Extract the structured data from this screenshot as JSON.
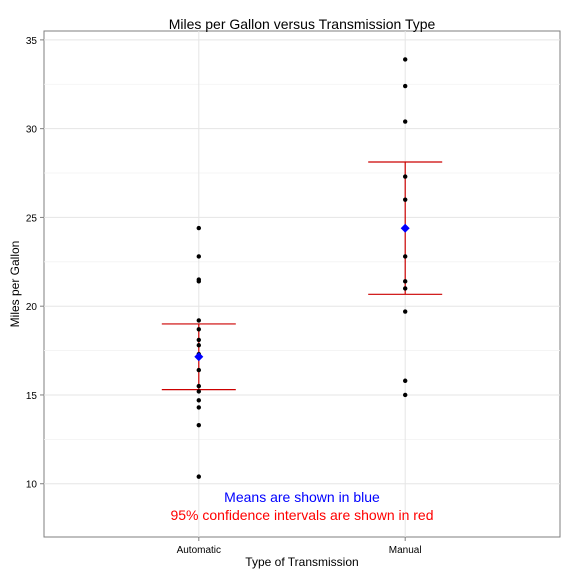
{
  "chart_data": {
    "type": "scatter",
    "title": "Miles per Gallon versus Transmission Type",
    "xlabel": "Type of Transmission",
    "ylabel": "Miles per Gallon",
    "categories": [
      "Automatic",
      "Manual"
    ],
    "ylim": [
      7,
      35.5
    ],
    "yticks": [
      10,
      15,
      20,
      25,
      30,
      35
    ],
    "grid": true,
    "point_color": "#000000",
    "mean_color": "#0000ff",
    "ci_color": "#cc0000",
    "series": [
      {
        "category": "Automatic",
        "points": [
          10.4,
          13.3,
          14.3,
          14.7,
          15.2,
          15.5,
          16.4,
          17.3,
          17.8,
          18.1,
          18.7,
          19.2,
          21.4,
          21.5,
          22.8,
          24.4
        ],
        "mean": 17.15,
        "ci": [
          15.3,
          19.0
        ]
      },
      {
        "category": "Manual",
        "points": [
          15.0,
          15.8,
          19.7,
          21.0,
          21.4,
          22.8,
          26.0,
          27.3,
          30.4,
          32.4,
          33.9
        ],
        "mean": 24.39,
        "ci": [
          20.67,
          28.12
        ]
      }
    ],
    "annotations": [
      {
        "text": "Means are shown in blue",
        "color": "#0000ff"
      },
      {
        "text": "95% confidence intervals are shown in red",
        "color": "#ff0000"
      }
    ]
  }
}
